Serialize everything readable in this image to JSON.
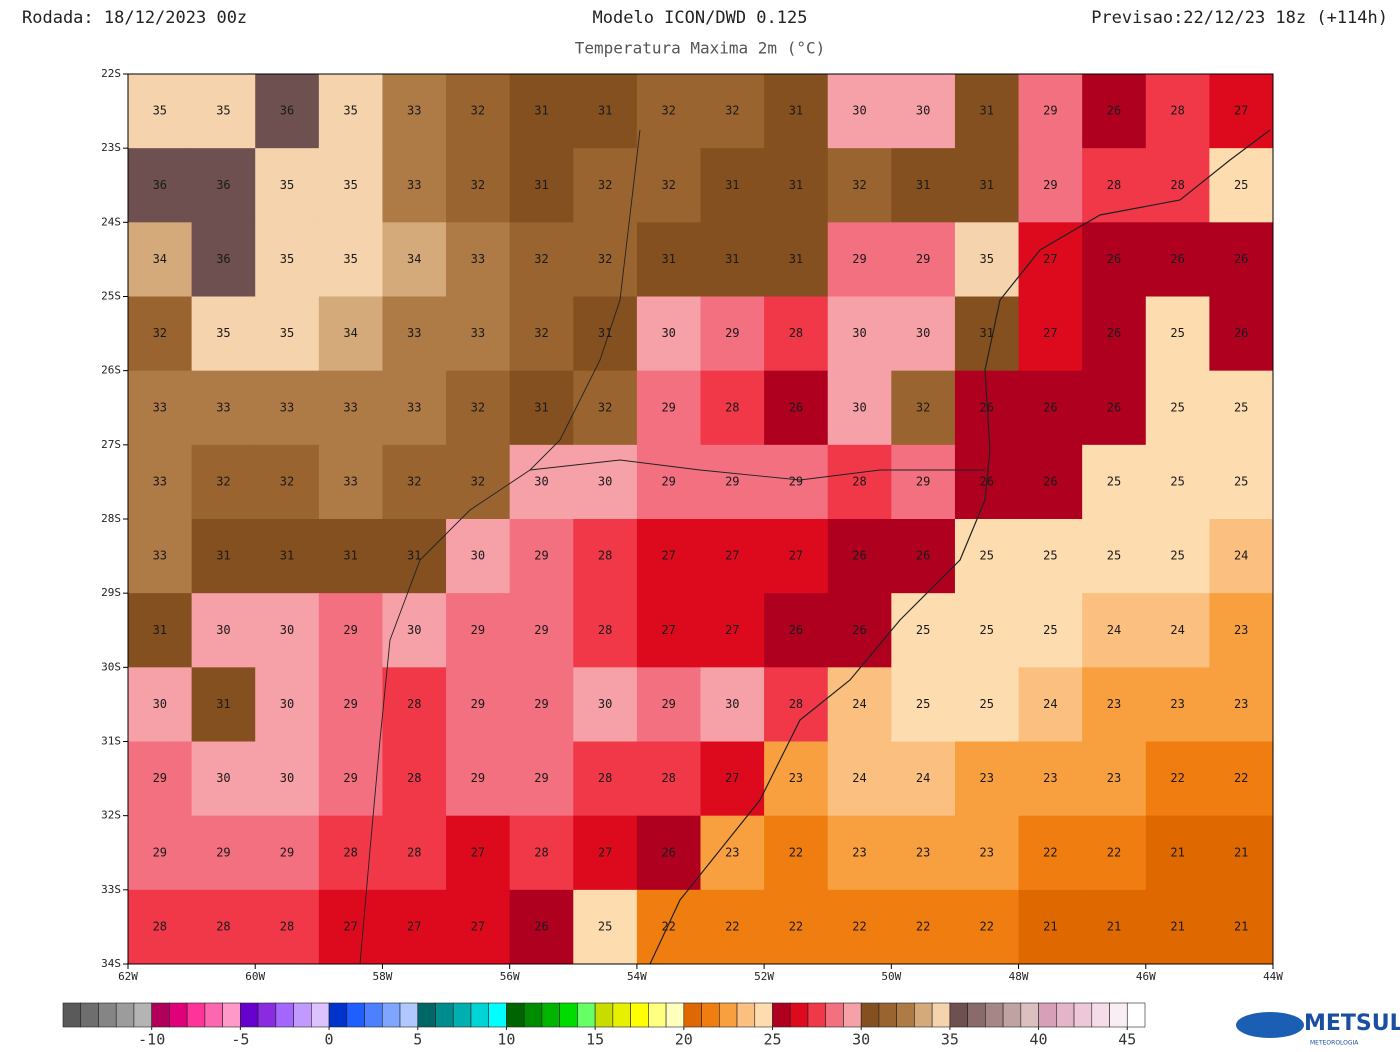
{
  "header": {
    "run": "Rodada: 18/12/2023 00z",
    "model": "Modelo ICON/DWD 0.125",
    "forecast": "Previsao:22/12/23 18z (+114h)",
    "subtitle": "Temperatura Maxima 2m (°C)"
  },
  "map": {
    "xlim": [
      -62,
      -44
    ],
    "ylim": [
      -34,
      -22
    ],
    "xticks": [
      {
        "value": -62,
        "label": "62W"
      },
      {
        "value": -60,
        "label": "60W"
      },
      {
        "value": -58,
        "label": "58W"
      },
      {
        "value": -56,
        "label": "56W"
      },
      {
        "value": -54,
        "label": "54W"
      },
      {
        "value": -52,
        "label": "52W"
      },
      {
        "value": -50,
        "label": "50W"
      },
      {
        "value": -48,
        "label": "48W"
      },
      {
        "value": -46,
        "label": "46W"
      },
      {
        "value": -44,
        "label": "44W"
      }
    ],
    "yticks": [
      {
        "value": -22,
        "label": "22S"
      },
      {
        "value": -23,
        "label": "23S"
      },
      {
        "value": -24,
        "label": "24S"
      },
      {
        "value": -25,
        "label": "25S"
      },
      {
        "value": -26,
        "label": "26S"
      },
      {
        "value": -27,
        "label": "27S"
      },
      {
        "value": -28,
        "label": "28S"
      },
      {
        "value": -29,
        "label": "29S"
      },
      {
        "value": -30,
        "label": "30S"
      },
      {
        "value": -31,
        "label": "31S"
      },
      {
        "value": -32,
        "label": "32S"
      },
      {
        "value": -33,
        "label": "33S"
      },
      {
        "value": -34,
        "label": "34S"
      }
    ],
    "values": [
      [
        35,
        35,
        36,
        35,
        33,
        32,
        31,
        31,
        32,
        32,
        31,
        30,
        30,
        31,
        29,
        26,
        28,
        27
      ],
      [
        36,
        36,
        35,
        35,
        33,
        32,
        31,
        32,
        32,
        31,
        31,
        32,
        31,
        31,
        29,
        28,
        28,
        25
      ],
      [
        34,
        36,
        35,
        35,
        34,
        33,
        32,
        32,
        31,
        31,
        31,
        29,
        29,
        35,
        27,
        26,
        26,
        26
      ],
      [
        32,
        35,
        35,
        34,
        33,
        33,
        32,
        31,
        30,
        29,
        28,
        30,
        30,
        31,
        27,
        26,
        25,
        26
      ],
      [
        33,
        33,
        33,
        33,
        33,
        32,
        31,
        32,
        29,
        28,
        26,
        30,
        32,
        26,
        26,
        26,
        25,
        25
      ],
      [
        33,
        32,
        32,
        33,
        32,
        32,
        30,
        30,
        29,
        29,
        29,
        28,
        29,
        26,
        26,
        25,
        25,
        25
      ],
      [
        33,
        31,
        31,
        31,
        31,
        30,
        29,
        28,
        27,
        27,
        27,
        26,
        26,
        25,
        25,
        25,
        25,
        24
      ],
      [
        31,
        30,
        30,
        29,
        30,
        29,
        29,
        28,
        27,
        27,
        26,
        26,
        25,
        25,
        25,
        24,
        24,
        23
      ],
      [
        30,
        31,
        30,
        29,
        28,
        29,
        29,
        30,
        29,
        30,
        28,
        24,
        25,
        25,
        24,
        23,
        23,
        23
      ],
      [
        29,
        30,
        30,
        29,
        28,
        29,
        29,
        28,
        28,
        27,
        23,
        24,
        24,
        23,
        23,
        23,
        22,
        22
      ],
      [
        29,
        29,
        29,
        28,
        28,
        27,
        28,
        27,
        26,
        23,
        22,
        23,
        23,
        23,
        22,
        22,
        21,
        21
      ],
      [
        28,
        28,
        28,
        27,
        27,
        27,
        26,
        25,
        22,
        22,
        22,
        22,
        22,
        22,
        21,
        21,
        21,
        21
      ]
    ]
  },
  "colorbar": {
    "range": [
      -15,
      46
    ],
    "ticks": [
      -10,
      -5,
      0,
      5,
      10,
      15,
      20,
      25,
      30,
      35,
      40,
      45
    ],
    "colors": [
      "#5a5a5a",
      "#6e6e6e",
      "#858585",
      "#9c9c9c",
      "#b4b4b4",
      "#b0005a",
      "#e0007a",
      "#ff3399",
      "#ff66b0",
      "#ff99c8",
      "#6600cc",
      "#8a2be2",
      "#a366ff",
      "#c299ff",
      "#dcc2ff",
      "#0033cc",
      "#1f5fff",
      "#4d80ff",
      "#7fa6ff",
      "#b0c8ff",
      "#006666",
      "#008c8c",
      "#00b0b0",
      "#00d4d4",
      "#00ffff",
      "#006400",
      "#008c00",
      "#00b400",
      "#00dc00",
      "#66ff66",
      "#c8dc00",
      "#e6f000",
      "#ffff00",
      "#ffff80",
      "#ffffc0",
      "#e06800",
      "#f07d10",
      "#f8a040",
      "#fbc080",
      "#fddcb0",
      "#b00020",
      "#dd0a1e",
      "#f03848",
      "#f27080",
      "#f6a0a8",
      "#84501f",
      "#9a6430",
      "#ae7a45",
      "#d4aa7a",
      "#f5d3ac",
      "#6e5050",
      "#8a6a6a",
      "#a68686",
      "#c0a2a2",
      "#dcc0c0",
      "#d8a0b8",
      "#e4b4c8",
      "#ecc8d8",
      "#f4dce8",
      "#f8eef4",
      "#ffffff"
    ]
  },
  "logo": {
    "name": "METSUL",
    "tagline": "METEOROLOGIA"
  }
}
